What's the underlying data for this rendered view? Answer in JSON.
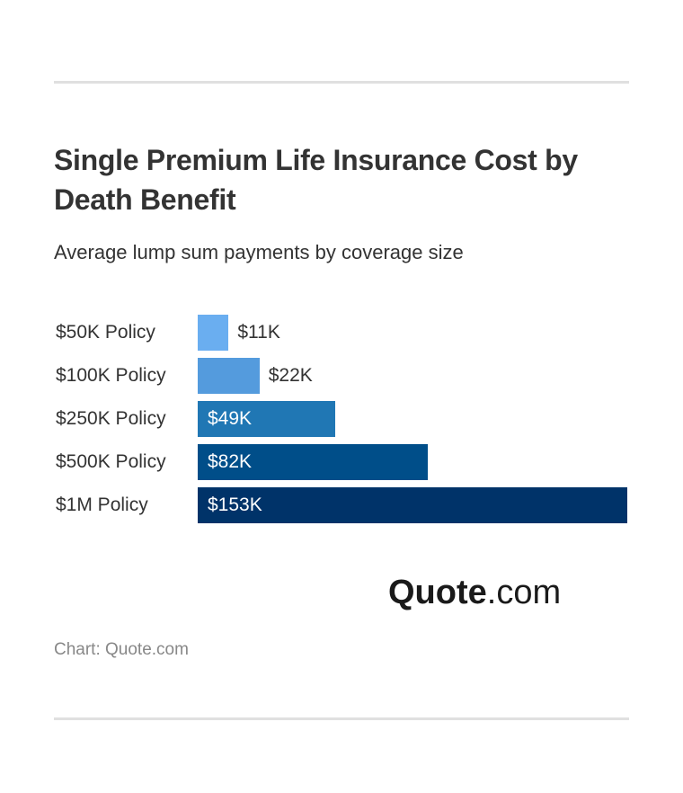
{
  "chart_data": {
    "type": "bar",
    "orientation": "horizontal",
    "title": "Single Premium Life Insurance Cost by Death Benefit",
    "subtitle": "Average lump sum payments by coverage size",
    "categories": [
      "$50K Policy",
      "$100K Policy",
      "$250K Policy",
      "$500K Policy",
      "$1M Policy"
    ],
    "values": [
      11,
      22,
      49,
      82,
      153
    ],
    "value_labels": [
      "$11K",
      "$22K",
      "$49K",
      "$82K",
      "$153K"
    ],
    "unit": "$K",
    "xlim": [
      0,
      153
    ],
    "grid": false,
    "colors": [
      "#6aaef0",
      "#549bdd",
      "#2077b4",
      "#004e89",
      "#003369"
    ]
  },
  "logo": {
    "bold": "Quote",
    "rest": ".com"
  },
  "credit": "Chart: Quote.com"
}
